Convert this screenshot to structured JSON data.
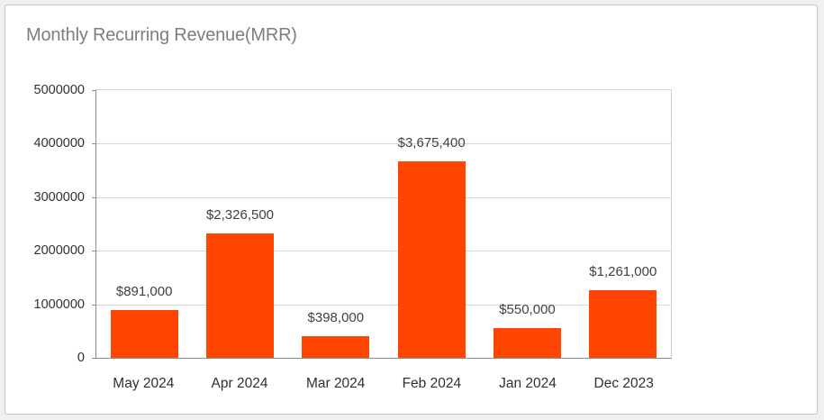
{
  "card": {
    "title": "Monthly Recurring Revenue(MRR)"
  },
  "chart_data": {
    "type": "bar",
    "title": "Monthly Recurring Revenue(MRR)",
    "categories": [
      "May 2024",
      "Apr 2024",
      "Mar 2024",
      "Feb 2024",
      "Jan 2024",
      "Dec 2023"
    ],
    "values": [
      891000,
      2326500,
      398000,
      3675400,
      550000,
      1261000
    ],
    "value_labels": [
      "$891,000",
      "$2,326,500",
      "$398,000",
      "$3,675,400",
      "$550,000",
      "$1,261,000"
    ],
    "xlabel": "",
    "ylabel": "",
    "ylim": [
      0,
      5000000
    ],
    "yticks": [
      0,
      1000000,
      2000000,
      3000000,
      4000000,
      5000000
    ],
    "ytick_labels": [
      "0",
      "1000000",
      "2000000",
      "3000000",
      "4000000",
      "5000000"
    ],
    "grid": true,
    "legend": false,
    "bar_color": "#FF4500"
  },
  "colors": {
    "bar": "#FF4500",
    "title_text": "#7e7e7e",
    "axis_text": "#303030",
    "value_label_text": "#404040",
    "gridline": "#d9d9d9",
    "axis_line": "#8c8c8c",
    "card_border": "#c6c6c6",
    "card_background": "#ffffff",
    "page_background": "#f0f0f0"
  }
}
